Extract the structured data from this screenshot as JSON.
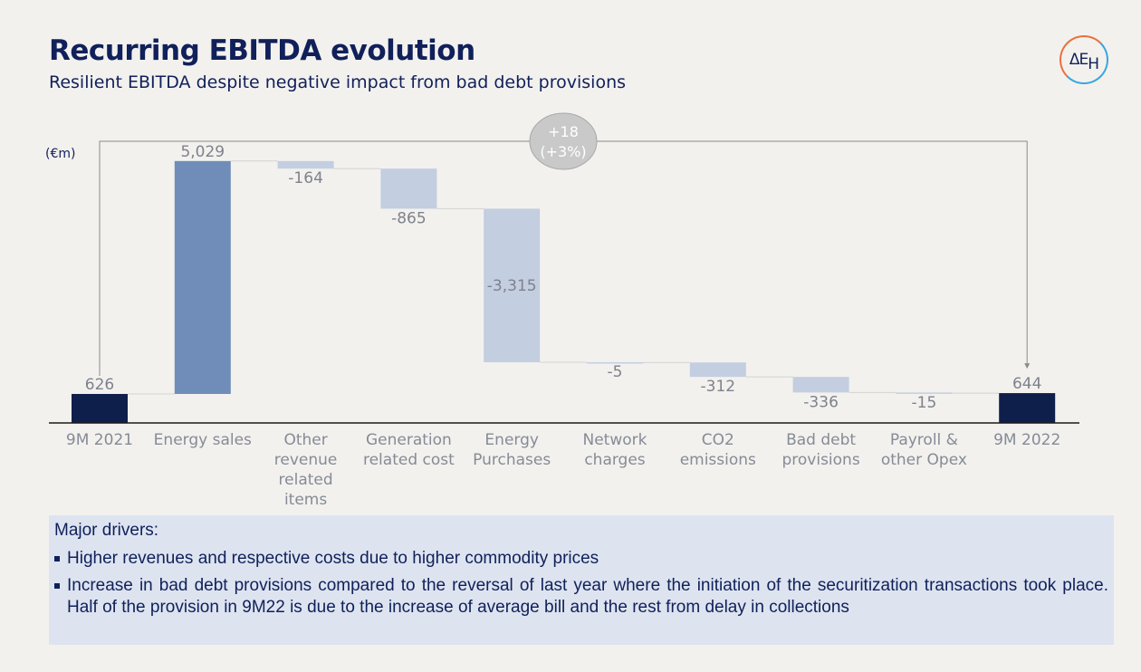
{
  "header": {
    "title": "Recurring EBITDA evolution",
    "subtitle": "Resilient EBITDA despite negative impact from bad debt provisions",
    "logo_text": "ΔEH"
  },
  "chart_data": {
    "type": "bar",
    "subtype": "waterfall",
    "unit_label": "(€m)",
    "categories": [
      "9M 2021",
      "Energy sales",
      "Other revenue related items",
      "Generation related cost",
      "Energy Purchases",
      "Network charges",
      "CO2 emissions",
      "Bad debt provisions",
      "Payroll & other Opex",
      "9M 2022"
    ],
    "category_lines": [
      [
        "9M 2021"
      ],
      [
        "Energy sales"
      ],
      [
        "Other",
        "revenue",
        "related",
        "items"
      ],
      [
        "Generation",
        "related cost"
      ],
      [
        "Energy",
        "Purchases"
      ],
      [
        "Network",
        "charges"
      ],
      [
        "CO2",
        "emissions"
      ],
      [
        "Bad debt",
        "provisions"
      ],
      [
        "Payroll &",
        "other Opex"
      ],
      [
        "9M 2022"
      ]
    ],
    "values": [
      626,
      5029,
      -164,
      -865,
      -3315,
      -5,
      -312,
      -336,
      -15,
      644
    ],
    "value_labels": [
      "626",
      "5,029",
      "-164",
      "-865",
      "-3,315",
      "-5",
      "-312",
      "-336",
      "-15",
      "644"
    ],
    "bar_kinds": [
      "total",
      "increase",
      "decrease",
      "decrease",
      "decrease",
      "decrease",
      "decrease",
      "decrease",
      "decrease",
      "total"
    ],
    "colors": {
      "total": "#0f1f4b",
      "increase": "#6f8db8",
      "decrease": "#c3cee0",
      "axis": "#1a1a1a",
      "bridge_arrow": "#8c8c8c",
      "badge_fill": "#c9c9c9",
      "badge_text": "#ffffff"
    },
    "bridge": {
      "from": "9M 2021",
      "to": "9M 2022",
      "line1": "+18",
      "line2": "(+3%)"
    }
  },
  "drivers": {
    "heading": "Major drivers:",
    "items": [
      "Higher revenues and respective costs due to higher commodity prices",
      "Increase in bad debt provisions compared to the reversal of last year where the initiation of the securitization transactions took place. Half of the provision in 9M22 is due to the increase of average bill and the rest from delay in collections"
    ]
  }
}
